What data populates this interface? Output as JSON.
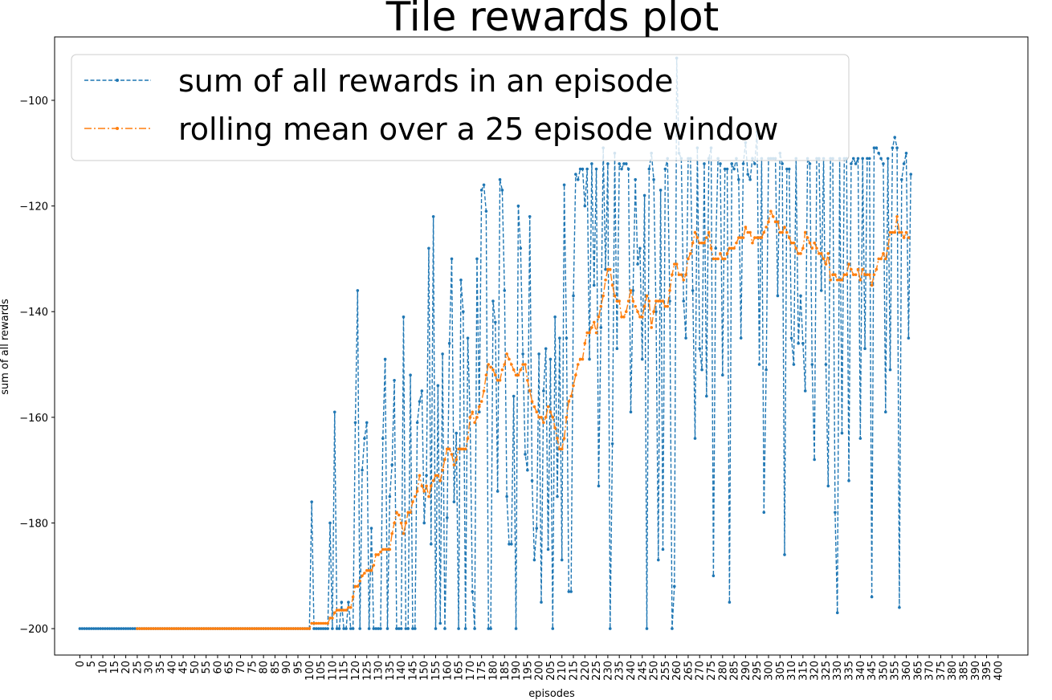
{
  "chart_data": {
    "type": "line",
    "title": "Tile rewards plot",
    "xlabel": "episodes",
    "ylabel": "sum of all rewards",
    "xlim": [
      -11,
      413
    ],
    "ylim": [
      -205,
      -88
    ],
    "x_ticks": [
      0,
      5,
      10,
      15,
      20,
      25,
      30,
      35,
      40,
      45,
      50,
      55,
      60,
      65,
      70,
      75,
      80,
      85,
      90,
      95,
      100,
      105,
      110,
      115,
      120,
      125,
      130,
      135,
      140,
      145,
      150,
      155,
      160,
      165,
      170,
      175,
      180,
      185,
      190,
      195,
      200,
      205,
      210,
      215,
      220,
      225,
      230,
      235,
      240,
      245,
      250,
      255,
      260,
      265,
      270,
      275,
      280,
      285,
      290,
      295,
      300,
      305,
      310,
      315,
      320,
      325,
      330,
      335,
      340,
      345,
      350,
      355,
      360,
      365,
      370,
      375,
      380,
      385,
      390,
      395,
      400
    ],
    "y_ticks": [
      -200,
      -180,
      -160,
      -140,
      -120,
      -100
    ],
    "grid": false,
    "legend_position": "top-left",
    "series": [
      {
        "name": "sum of all rewards in an episode",
        "color": "#1f77b4",
        "style": "dashed",
        "marker": "dot",
        "x_start": 0,
        "values": [
          -200,
          -200,
          -200,
          -200,
          -200,
          -200,
          -200,
          -200,
          -200,
          -200,
          -200,
          -200,
          -200,
          -200,
          -200,
          -200,
          -200,
          -200,
          -200,
          -200,
          -200,
          -200,
          -200,
          -200,
          -200,
          -200,
          -200,
          -200,
          -200,
          -200,
          -200,
          -200,
          -200,
          -200,
          -200,
          -200,
          -200,
          -200,
          -200,
          -200,
          -200,
          -200,
          -200,
          -200,
          -200,
          -200,
          -200,
          -200,
          -200,
          -200,
          -200,
          -200,
          -200,
          -200,
          -200,
          -200,
          -200,
          -200,
          -200,
          -200,
          -200,
          -200,
          -200,
          -200,
          -200,
          -200,
          -200,
          -200,
          -200,
          -200,
          -200,
          -200,
          -200,
          -200,
          -200,
          -200,
          -200,
          -200,
          -200,
          -200,
          -200,
          -200,
          -200,
          -200,
          -200,
          -200,
          -200,
          -200,
          -200,
          -200,
          -200,
          -200,
          -200,
          -200,
          -200,
          -200,
          -200,
          -200,
          -200,
          -200,
          -200,
          -176,
          -200,
          -200,
          -200,
          -200,
          -200,
          -200,
          -200,
          -180,
          -200,
          -159,
          -200,
          -200,
          -195,
          -200,
          -200,
          -195,
          -200,
          -200,
          -161,
          -136,
          -200,
          -170,
          -164,
          -161,
          -200,
          -181,
          -200,
          -200,
          -200,
          -200,
          -164,
          -149,
          -200,
          -175,
          -169,
          -153,
          -200,
          -200,
          -200,
          -141,
          -200,
          -200,
          -152,
          -200,
          -200,
          -161,
          -157,
          -155,
          -180,
          -171,
          -128,
          -184,
          -122,
          -200,
          -154,
          -199,
          -148,
          -200,
          -179,
          -146,
          -130,
          -176,
          -163,
          -200,
          -134,
          -140,
          -200,
          -145,
          -160,
          -193,
          -200,
          -130,
          -159,
          -117,
          -116,
          -121,
          -200,
          -200,
          -138,
          -142,
          -174,
          -115,
          -117,
          -136,
          -175,
          -184,
          -184,
          -156,
          -200,
          -120,
          -128,
          -148,
          -167,
          -170,
          -122,
          -172,
          -187,
          -181,
          -148,
          -195,
          -155,
          -147,
          -185,
          -149,
          -200,
          -141,
          -175,
          -145,
          -187,
          -116,
          -145,
          -193,
          -193,
          -137,
          -114,
          -115,
          -113,
          -113,
          -120,
          -113,
          -149,
          -112,
          -135,
          -113,
          -173,
          -143,
          -109,
          -132,
          -112,
          -200,
          -165,
          -110,
          -147,
          -112,
          -113,
          -112,
          -112,
          -113,
          -159,
          -136,
          -115,
          -131,
          -128,
          -149,
          -118,
          -200,
          -113,
          -110,
          -115,
          -140,
          -187,
          -117,
          -185,
          -113,
          -111,
          -138,
          -200,
          -192,
          -92,
          -110,
          -111,
          -138,
          -145,
          -111,
          -111,
          -136,
          -164,
          -109,
          -147,
          -151,
          -112,
          -156,
          -111,
          -109,
          -190,
          -128,
          -111,
          -112,
          -152,
          -113,
          -113,
          -195,
          -112,
          -113,
          -111,
          -115,
          -145,
          -112,
          -108,
          -114,
          -115,
          -111,
          -112,
          -106,
          -150,
          -111,
          -178,
          -151,
          -111,
          -111,
          -111,
          -111,
          -137,
          -110,
          -112,
          -186,
          -113,
          -113,
          -145,
          -150,
          -111,
          -146,
          -137,
          -146,
          -155,
          -111,
          -112,
          -150,
          -168,
          -111,
          -111,
          -136,
          -111,
          -150,
          -173,
          -111,
          -111,
          -178,
          -197,
          -111,
          -163,
          -111,
          -111,
          -172,
          -112,
          -111,
          -112,
          -111,
          -164,
          -111,
          -147,
          -111,
          -111,
          -194,
          -109,
          -109,
          -110,
          -111,
          -112,
          -159,
          -111,
          -151,
          -109,
          -107,
          -109,
          -196,
          -115,
          -112,
          -110,
          -145,
          -114
        ]
      },
      {
        "name": "rolling mean over a 25 episode window",
        "color": "#ff7f0e",
        "style": "dashdot",
        "marker": "dot",
        "x_start": 25,
        "values": [
          -200,
          -200,
          -200,
          -200,
          -200,
          -200,
          -200,
          -200,
          -200,
          -200,
          -200,
          -200,
          -200,
          -200,
          -200,
          -200,
          -200,
          -200,
          -200,
          -200,
          -200,
          -200,
          -200,
          -200,
          -200,
          -200,
          -200,
          -200,
          -200,
          -200,
          -200,
          -200,
          -200,
          -200,
          -200,
          -200,
          -200,
          -200,
          -200,
          -200,
          -200,
          -200,
          -200,
          -200,
          -200,
          -200,
          -200,
          -200,
          -200,
          -200,
          -200,
          -200,
          -200,
          -200,
          -200,
          -200,
          -200,
          -200,
          -200,
          -200,
          -200,
          -200,
          -200,
          -200,
          -200,
          -200,
          -200,
          -200,
          -200,
          -200,
          -200,
          -200,
          -200,
          -200,
          -200,
          -200,
          -199,
          -199,
          -199,
          -199,
          -199,
          -199,
          -199,
          -199,
          -198,
          -198,
          -197,
          -196.5,
          -196.5,
          -196.5,
          -196.5,
          -196.5,
          -196,
          -196,
          -194,
          -192,
          -192,
          -191,
          -190,
          -189.5,
          -189,
          -189,
          -189,
          -188,
          -186,
          -186,
          -185.5,
          -185,
          -185,
          -185,
          -185,
          -182,
          -180,
          -178,
          -178.5,
          -180,
          -182,
          -180,
          -178,
          -178,
          -176,
          -175,
          -174,
          -171,
          -173,
          -174,
          -173,
          -175,
          -173,
          -172,
          -171,
          -171,
          -172,
          -170,
          -168,
          -166,
          -166,
          -167,
          -169,
          -168,
          -166,
          -166,
          -166,
          -166,
          -164,
          -160,
          -159,
          -161,
          -160,
          -158,
          -157,
          -155,
          -152,
          -150,
          -150.5,
          -151,
          -152,
          -153,
          -153,
          -151,
          -150,
          -148,
          -149,
          -150,
          -151,
          -152,
          -152,
          -151,
          -150,
          -150,
          -153,
          -155,
          -157,
          -158,
          -159,
          -160,
          -160,
          -161,
          -160,
          -158,
          -159,
          -160,
          -162,
          -164,
          -166,
          -166,
          -164,
          -160,
          -157,
          -156,
          -154,
          -152,
          -150,
          -149,
          -149,
          -146,
          -144,
          -144,
          -143,
          -142,
          -144,
          -141,
          -139,
          -137,
          -134,
          -132,
          -132,
          -135,
          -137,
          -138,
          -138,
          -141,
          -141,
          -140,
          -138,
          -136,
          -138,
          -139,
          -140,
          -141,
          -141,
          -139,
          -137,
          -138,
          -143,
          -140,
          -138,
          -138,
          -138,
          -138,
          -139,
          -139,
          -136,
          -133,
          -131,
          -131,
          -133,
          -133,
          -134,
          -133,
          -130,
          -129,
          -127,
          -125,
          -126,
          -127,
          -127,
          -127,
          -126,
          -125,
          -128,
          -130,
          -130,
          -130,
          -129,
          -130,
          -130,
          -129,
          -128,
          -128,
          -128,
          -127,
          -126,
          -126,
          -126,
          -124,
          -125,
          -125,
          -127,
          -126,
          -126,
          -126,
          -126,
          -125,
          -124,
          -123,
          -121,
          -122,
          -123,
          -123,
          -125,
          -125,
          -124,
          -125,
          -126,
          -127,
          -127,
          -128,
          -129,
          -129,
          -128,
          -125,
          -126,
          -127,
          -128,
          -127,
          -128,
          -129,
          -129,
          -130,
          -131,
          -129,
          -134,
          -133,
          -133,
          -134,
          -134,
          -134,
          -133,
          -133,
          -131,
          -132,
          -133,
          -133,
          -132,
          -134,
          -132,
          -133,
          -133,
          -133,
          -135,
          -133,
          -132,
          -130,
          -130,
          -129,
          -130,
          -128,
          -125,
          -125,
          -125,
          -122,
          -125,
          -125,
          -126,
          -125,
          -126
        ]
      }
    ]
  }
}
